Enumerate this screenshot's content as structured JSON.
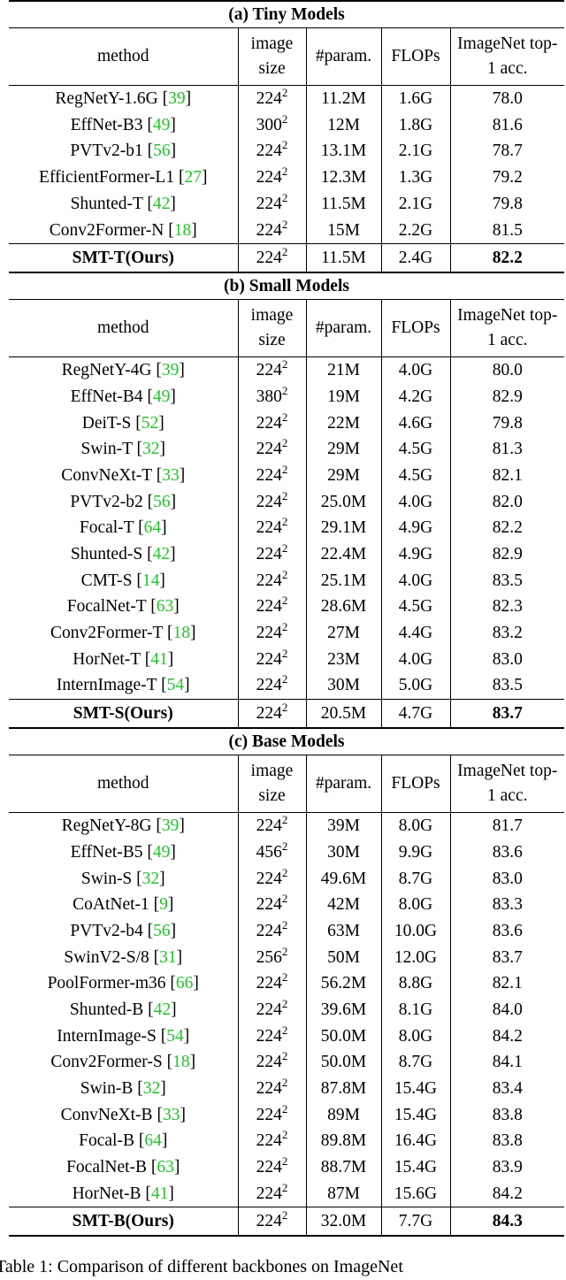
{
  "sections": [
    {
      "title": "(a) Tiny Models",
      "columns": [
        "method",
        "image size",
        "#param.",
        "FLOPs",
        "ImageNet top-1 acc."
      ],
      "rows": [
        {
          "method": "RegNetY-1.6G",
          "ref": "39",
          "size": "224",
          "param": "11.2M",
          "flops": "1.6G",
          "acc": "78.0"
        },
        {
          "method": "EffNet-B3",
          "ref": "49",
          "size": "300",
          "param": "12M",
          "flops": "1.8G",
          "acc": "81.6"
        },
        {
          "method": "PVTv2-b1",
          "ref": "56",
          "size": "224",
          "param": "13.1M",
          "flops": "2.1G",
          "acc": "78.7"
        },
        {
          "method": "EfficientFormer-L1",
          "ref": "27",
          "size": "224",
          "param": "12.3M",
          "flops": "1.3G",
          "acc": "79.2"
        },
        {
          "method": "Shunted-T",
          "ref": "42",
          "size": "224",
          "param": "11.5M",
          "flops": "2.1G",
          "acc": "79.8"
        },
        {
          "method": "Conv2Former-N",
          "ref": "18",
          "size": "224",
          "param": "15M",
          "flops": "2.2G",
          "acc": "81.5"
        }
      ],
      "ours": {
        "method": "SMT-T(Ours)",
        "size": "224",
        "param": "11.5M",
        "flops": "2.4G",
        "acc": "82.2"
      }
    },
    {
      "title": "(b) Small Models",
      "columns": [
        "method",
        "image size",
        "#param.",
        "FLOPs",
        "ImageNet top-1 acc."
      ],
      "rows": [
        {
          "method": "RegNetY-4G",
          "ref": "39",
          "size": "224",
          "param": "21M",
          "flops": "4.0G",
          "acc": "80.0"
        },
        {
          "method": "EffNet-B4",
          "ref": "49",
          "size": "380",
          "param": "19M",
          "flops": "4.2G",
          "acc": "82.9"
        },
        {
          "method": "DeiT-S",
          "ref": "52",
          "size": "224",
          "param": "22M",
          "flops": "4.6G",
          "acc": "79.8"
        },
        {
          "method": "Swin-T",
          "ref": "32",
          "size": "224",
          "param": "29M",
          "flops": "4.5G",
          "acc": "81.3"
        },
        {
          "method": "ConvNeXt-T",
          "ref": "33",
          "size": "224",
          "param": "29M",
          "flops": "4.5G",
          "acc": "82.1"
        },
        {
          "method": "PVTv2-b2",
          "ref": "56",
          "size": "224",
          "param": "25.0M",
          "flops": "4.0G",
          "acc": "82.0"
        },
        {
          "method": "Focal-T",
          "ref": "64",
          "size": "224",
          "param": "29.1M",
          "flops": "4.9G",
          "acc": "82.2"
        },
        {
          "method": "Shunted-S",
          "ref": "42",
          "size": "224",
          "param": "22.4M",
          "flops": "4.9G",
          "acc": "82.9"
        },
        {
          "method": "CMT-S",
          "ref": "14",
          "size": "224",
          "param": "25.1M",
          "flops": "4.0G",
          "acc": "83.5"
        },
        {
          "method": "FocalNet-T",
          "ref": "63",
          "size": "224",
          "param": "28.6M",
          "flops": "4.5G",
          "acc": "82.3"
        },
        {
          "method": "Conv2Former-T",
          "ref": "18",
          "size": "224",
          "param": "27M",
          "flops": "4.4G",
          "acc": "83.2"
        },
        {
          "method": "HorNet-T",
          "ref": "41",
          "size": "224",
          "param": "23M",
          "flops": "4.0G",
          "acc": "83.0"
        },
        {
          "method": "InternImage-T",
          "ref": "54",
          "size": "224",
          "param": "30M",
          "flops": "5.0G",
          "acc": "83.5"
        }
      ],
      "ours": {
        "method": "SMT-S(Ours)",
        "size": "224",
        "param": "20.5M",
        "flops": "4.7G",
        "acc": "83.7"
      }
    },
    {
      "title": "(c) Base Models",
      "columns": [
        "method",
        "image size",
        "#param.",
        "FLOPs",
        "ImageNet top-1 acc."
      ],
      "rows": [
        {
          "method": "RegNetY-8G",
          "ref": "39",
          "size": "224",
          "param": "39M",
          "flops": "8.0G",
          "acc": "81.7"
        },
        {
          "method": "EffNet-B5",
          "ref": "49",
          "size": "456",
          "param": "30M",
          "flops": "9.9G",
          "acc": "83.6"
        },
        {
          "method": "Swin-S",
          "ref": "32",
          "size": "224",
          "param": "49.6M",
          "flops": "8.7G",
          "acc": "83.0"
        },
        {
          "method": "CoAtNet-1",
          "ref": "9",
          "size": "224",
          "param": "42M",
          "flops": "8.0G",
          "acc": "83.3"
        },
        {
          "method": "PVTv2-b4",
          "ref": "56",
          "size": "224",
          "param": "63M",
          "flops": "10.0G",
          "acc": "83.6"
        },
        {
          "method": "SwinV2-S/8",
          "ref": "31",
          "size": "256",
          "param": "50M",
          "flops": "12.0G",
          "acc": "83.7"
        },
        {
          "method": "PoolFormer-m36",
          "ref": "66",
          "size": "224",
          "param": "56.2M",
          "flops": "8.8G",
          "acc": "82.1"
        },
        {
          "method": "Shunted-B",
          "ref": "42",
          "size": "224",
          "param": "39.6M",
          "flops": "8.1G",
          "acc": "84.0"
        },
        {
          "method": "InternImage-S",
          "ref": "54",
          "size": "224",
          "param": "50.0M",
          "flops": "8.0G",
          "acc": "84.2"
        },
        {
          "method": "Conv2Former-S",
          "ref": "18",
          "size": "224",
          "param": "50.0M",
          "flops": "8.7G",
          "acc": "84.1"
        },
        {
          "method": "Swin-B",
          "ref": "32",
          "size": "224",
          "param": "87.8M",
          "flops": "15.4G",
          "acc": "83.4"
        },
        {
          "method": "ConvNeXt-B",
          "ref": "33",
          "size": "224",
          "param": "89M",
          "flops": "15.4G",
          "acc": "83.8"
        },
        {
          "method": "Focal-B",
          "ref": "64",
          "size": "224",
          "param": "89.8M",
          "flops": "16.4G",
          "acc": "83.8"
        },
        {
          "method": "FocalNet-B",
          "ref": "63",
          "size": "224",
          "param": "88.7M",
          "flops": "15.4G",
          "acc": "83.9"
        },
        {
          "method": "HorNet-B",
          "ref": "41",
          "size": "224",
          "param": "87M",
          "flops": "15.6G",
          "acc": "84.2"
        }
      ],
      "ours": {
        "method": "SMT-B(Ours)",
        "size": "224",
        "param": "32.0M",
        "flops": "7.7G",
        "acc": "84.3"
      }
    }
  ],
  "size_exponent": "2",
  "caption_partial": "Table 1: Comparison of different backbones on ImageNet",
  "ref_color": "#22c42a"
}
